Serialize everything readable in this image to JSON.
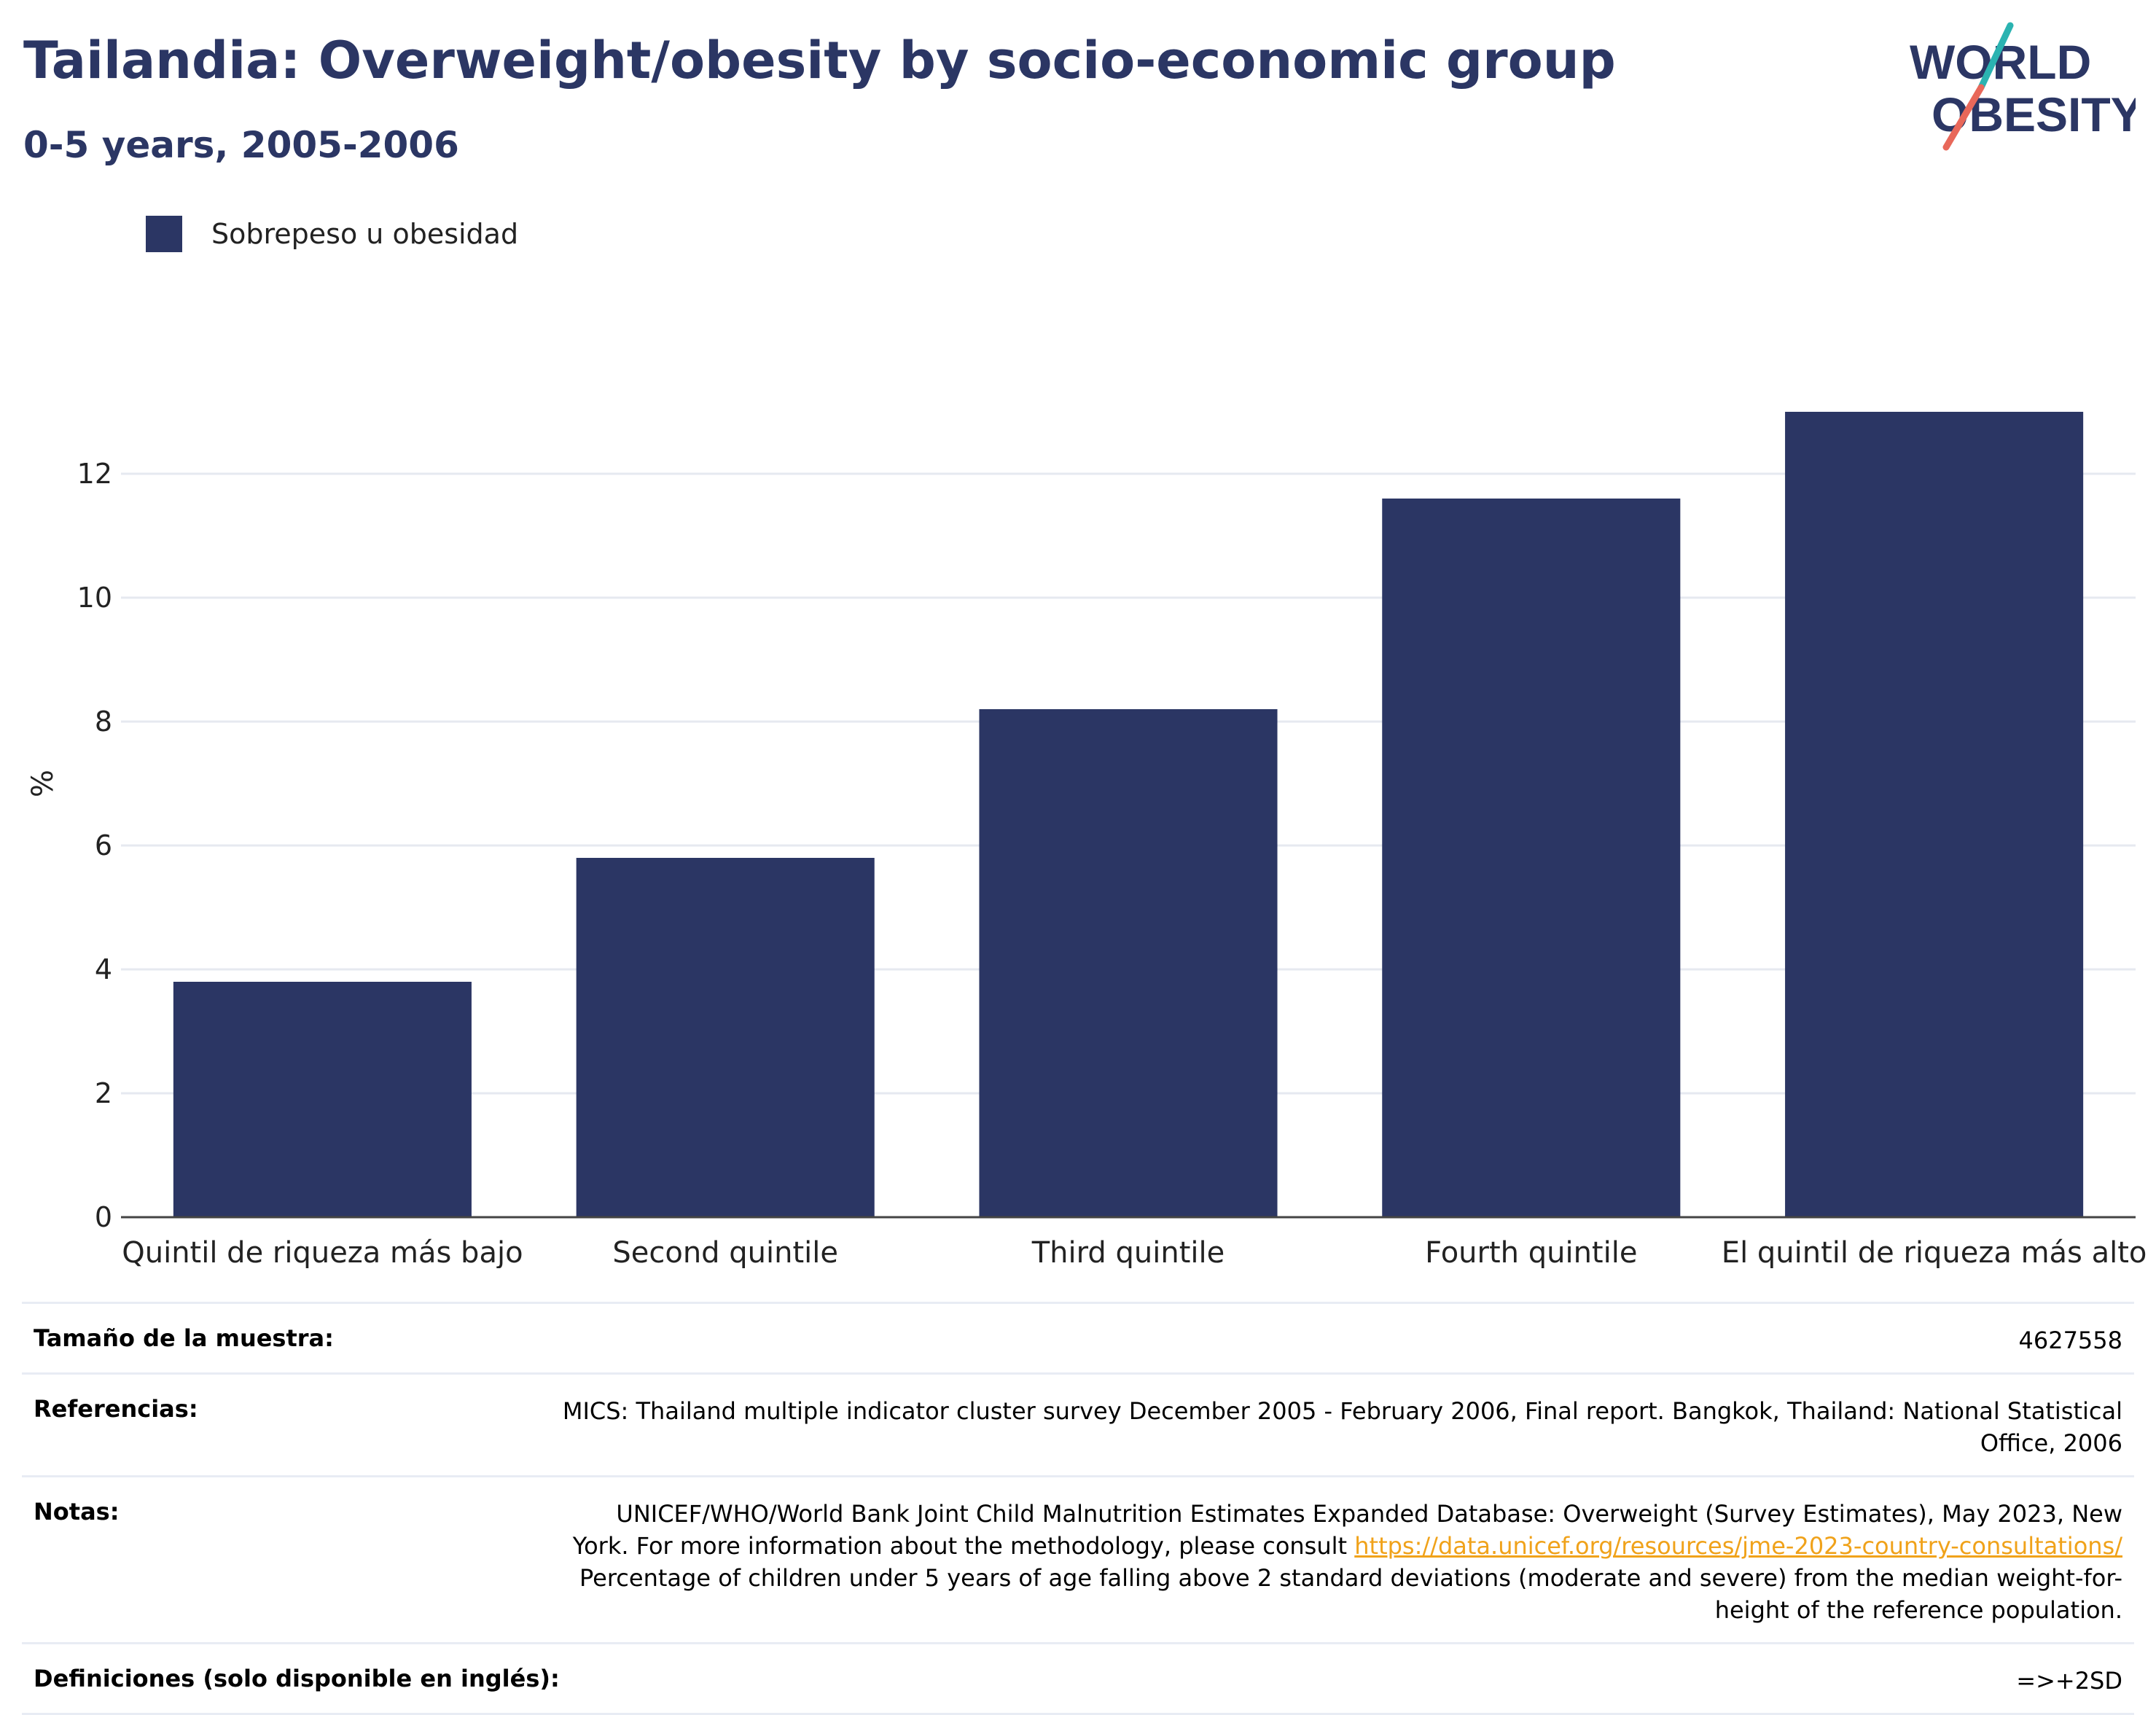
{
  "header": {
    "title": "Tailandia: Overweight/obesity by socio-economic group",
    "subtitle": "0-5 years, 2005-2006"
  },
  "logo": {
    "line1": "WORLD",
    "line2": "OBESITY"
  },
  "colors": {
    "bar": "#2b3664",
    "grid": "#e6e9f0",
    "accent_teal": "#2bb3b1",
    "accent_coral": "#e8685a",
    "link": "#f0a21a"
  },
  "legend": {
    "label": "Sobrepeso u obesidad"
  },
  "chart_data": {
    "type": "bar",
    "categories": [
      "Quintil de riqueza más bajo",
      "Second quintile",
      "Third quintile",
      "Fourth quintile",
      "El quintil de riqueza más alto"
    ],
    "series": [
      {
        "name": "Sobrepeso u obesidad",
        "values": [
          3.8,
          5.8,
          8.2,
          11.6,
          13.0
        ]
      }
    ],
    "title": "",
    "xlabel": "",
    "ylabel": "%",
    "ylim": [
      0,
      14
    ],
    "yticks": [
      0,
      2,
      4,
      6,
      8,
      10,
      12
    ],
    "grid": true,
    "legend_position": "top-left"
  },
  "info": {
    "sample_label": "Tamaño de la muestra:",
    "sample_value": "4627558",
    "references_label": "Referencias:",
    "references_value": "MICS: Thailand multiple indicator cluster survey December 2005 - February 2006, Final report. Bangkok, Thailand: National Statistical Office, 2006",
    "notes_label": "Notas:",
    "notes_text1": "UNICEF/WHO/World Bank Joint Child Malnutrition Estimates Expanded Database: Overweight (Survey Estimates), May 2023, New York. For more information about the methodology, please consult ",
    "notes_link": "https://data.unicef.org/resources/jme-2023-country-consultations/",
    "notes_text2": " Percentage of children under 5 years of age falling above 2 standard deviations (moderate and severe) from the median weight-for-height of the reference population.",
    "definitions_label": "Definiciones (solo disponible en inglés):",
    "definitions_value": "=>+2SD"
  }
}
